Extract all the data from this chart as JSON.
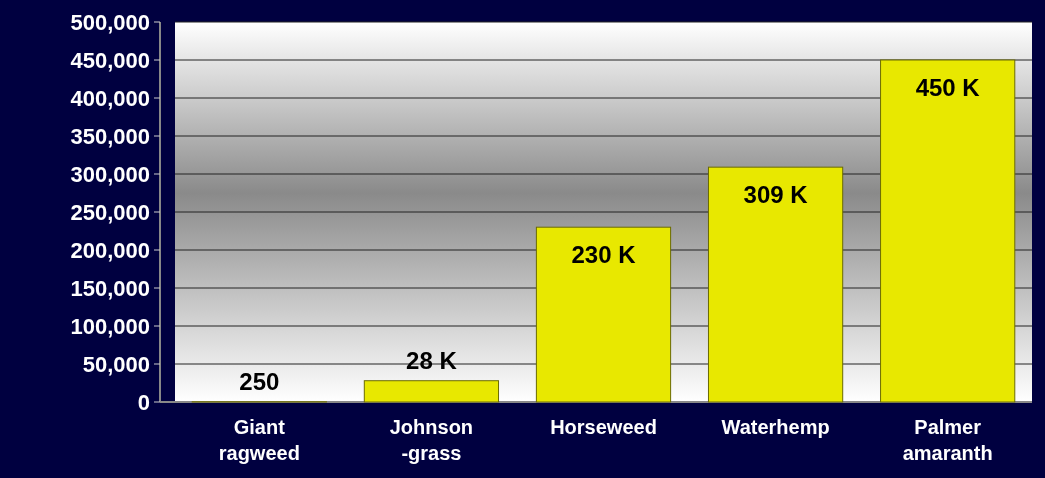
{
  "chart_data": {
    "type": "bar",
    "categories": [
      "Giant\nragweed",
      "Johnson\n-grass",
      "Horseweed",
      "Waterhemp",
      "Palmer\namaranth"
    ],
    "values": [
      250,
      28000,
      230000,
      309000,
      450000
    ],
    "value_labels": [
      "250",
      "28 K",
      "230 K",
      "309 K",
      "450 K"
    ],
    "color": "#e8e800",
    "ylim": [
      0,
      500000
    ],
    "yticks": [
      0,
      {
        "value": 50000,
        "label": "50,000"
      },
      {
        "value": 100000,
        "label": "100,000"
      },
      {
        "value": 150000,
        "label": "150,000"
      },
      {
        "value": 200000,
        "label": "200,000"
      },
      {
        "value": 250000,
        "label": "250,000"
      },
      {
        "value": 300000,
        "label": "300,000"
      },
      {
        "value": 350000,
        "label": "350,000"
      },
      {
        "value": 400000,
        "label": "400,000"
      },
      {
        "value": 450000,
        "label": "450,000"
      },
      {
        "value": 500000,
        "label": "500,000"
      }
    ],
    "grid": true
  }
}
